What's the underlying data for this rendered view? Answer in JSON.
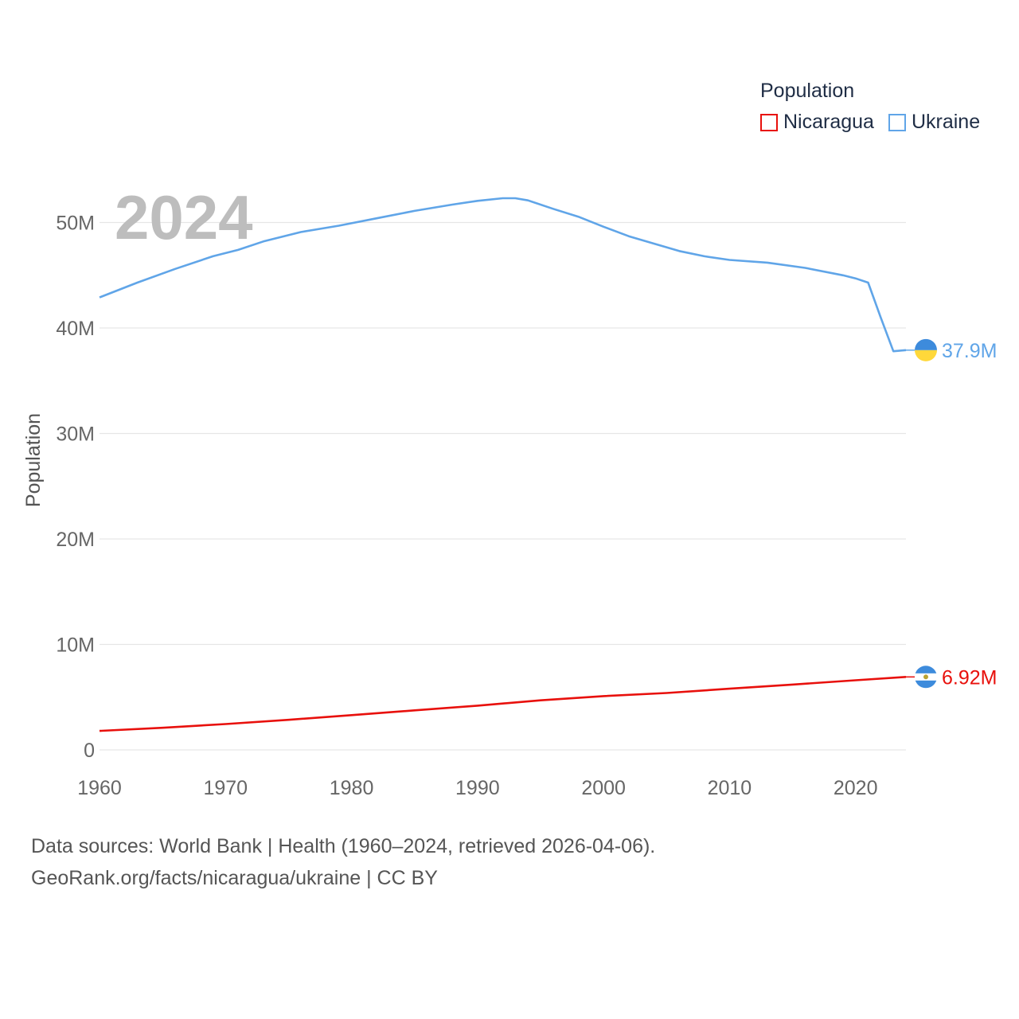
{
  "chart_data": {
    "type": "line",
    "title": "Population",
    "year_label": "2024",
    "ylabel": "Population",
    "xlabel": "",
    "xlim": [
      1960,
      2024
    ],
    "ylim": [
      0,
      55000000
    ],
    "x_ticks": [
      1960,
      1970,
      1980,
      1990,
      2000,
      2010,
      2020
    ],
    "y_ticks": [
      {
        "value": 0,
        "label": "0"
      },
      {
        "value": 10000000,
        "label": "10M"
      },
      {
        "value": 20000000,
        "label": "20M"
      },
      {
        "value": 30000000,
        "label": "30M"
      },
      {
        "value": 40000000,
        "label": "40M"
      },
      {
        "value": 50000000,
        "label": "50M"
      }
    ],
    "grid": true,
    "legend_position": "top-right",
    "series": [
      {
        "name": "Nicaragua",
        "color": "#e8100c",
        "end_label": "6.92M",
        "flag_icon": "nicaragua-flag-icon",
        "points": [
          [
            1960,
            1.8
          ],
          [
            1965,
            2.1
          ],
          [
            1970,
            2.45
          ],
          [
            1975,
            2.85
          ],
          [
            1980,
            3.3
          ],
          [
            1985,
            3.75
          ],
          [
            1990,
            4.2
          ],
          [
            1995,
            4.7
          ],
          [
            2000,
            5.1
          ],
          [
            2005,
            5.4
          ],
          [
            2010,
            5.8
          ],
          [
            2015,
            6.2
          ],
          [
            2020,
            6.6
          ],
          [
            2024,
            6.92
          ]
        ]
      },
      {
        "name": "Ukraine",
        "color": "#60a5e8",
        "end_label": "37.9M",
        "flag_icon": "ukraine-flag-icon",
        "points": [
          [
            1960,
            42.9
          ],
          [
            1963,
            44.3
          ],
          [
            1966,
            45.6
          ],
          [
            1969,
            46.8
          ],
          [
            1971,
            47.4
          ],
          [
            1973,
            48.2
          ],
          [
            1976,
            49.1
          ],
          [
            1979,
            49.7
          ],
          [
            1982,
            50.4
          ],
          [
            1985,
            51.1
          ],
          [
            1988,
            51.7
          ],
          [
            1990,
            52.05
          ],
          [
            1992,
            52.3
          ],
          [
            1993,
            52.3
          ],
          [
            1994,
            52.1
          ],
          [
            1996,
            51.3
          ],
          [
            1998,
            50.55
          ],
          [
            2000,
            49.6
          ],
          [
            2002,
            48.7
          ],
          [
            2004,
            48.0
          ],
          [
            2006,
            47.3
          ],
          [
            2008,
            46.8
          ],
          [
            2010,
            46.45
          ],
          [
            2013,
            46.2
          ],
          [
            2016,
            45.7
          ],
          [
            2019,
            45.0
          ],
          [
            2020,
            44.7
          ],
          [
            2021,
            44.3
          ],
          [
            2022,
            41.0
          ],
          [
            2023,
            37.8
          ],
          [
            2024,
            37.9
          ]
        ]
      }
    ]
  },
  "source": {
    "line1": "Data sources: World Bank | Health (1960–2024, retrieved 2026-04-06).",
    "line2": "GeoRank.org/facts/nicaragua/ukraine | CC BY"
  }
}
